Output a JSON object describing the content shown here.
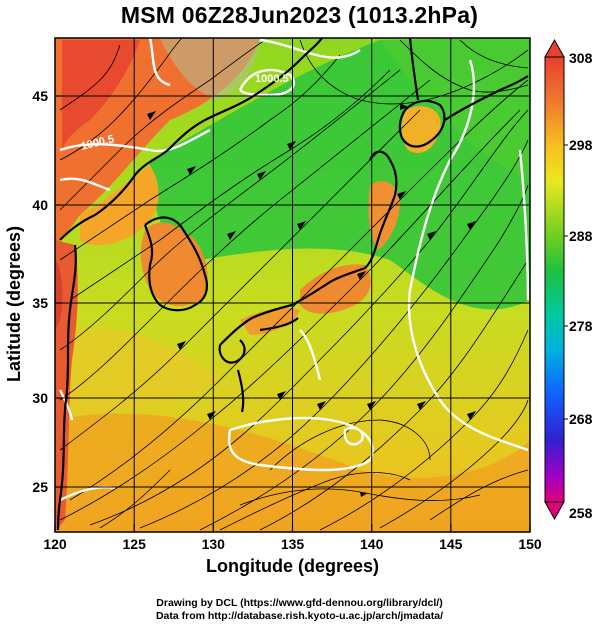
{
  "header": {
    "title": "MSM 06Z28Jun2023 (1013.2hPa)"
  },
  "axes": {
    "xlabel": "Longitude (degrees)",
    "ylabel": "Latitude  (degrees)",
    "x_ticks": [
      "120",
      "125",
      "130",
      "135",
      "140",
      "145",
      "150"
    ],
    "y_ticks": [
      "25",
      "30",
      "35",
      "40",
      "45"
    ],
    "xlim": [
      120,
      150
    ],
    "ylim": [
      22.4,
      47.6
    ]
  },
  "colorbar": {
    "labels": [
      "308",
      "298",
      "288",
      "278",
      "268",
      "258"
    ],
    "range": [
      258,
      308
    ],
    "colors": [
      "#e0007a",
      "#b000c0",
      "#3020d0",
      "#0060ff",
      "#00b0e0",
      "#00c890",
      "#20c040",
      "#90d820",
      "#f0e800",
      "#f8b020",
      "#f07830",
      "#e84030"
    ]
  },
  "map": {
    "contour_labels": [
      "1000.5",
      "1000.5"
    ],
    "contour_color": "#ffffff",
    "coast_color": "#000000",
    "grid_color": "#000000"
  },
  "footer": {
    "line1": "Drawing by DCL (https://www.gfd-dennou.org/library/dcl/)",
    "line2": "Data from http://database.rish.kyoto-u.ac.jp/arch/jmadata/"
  }
}
